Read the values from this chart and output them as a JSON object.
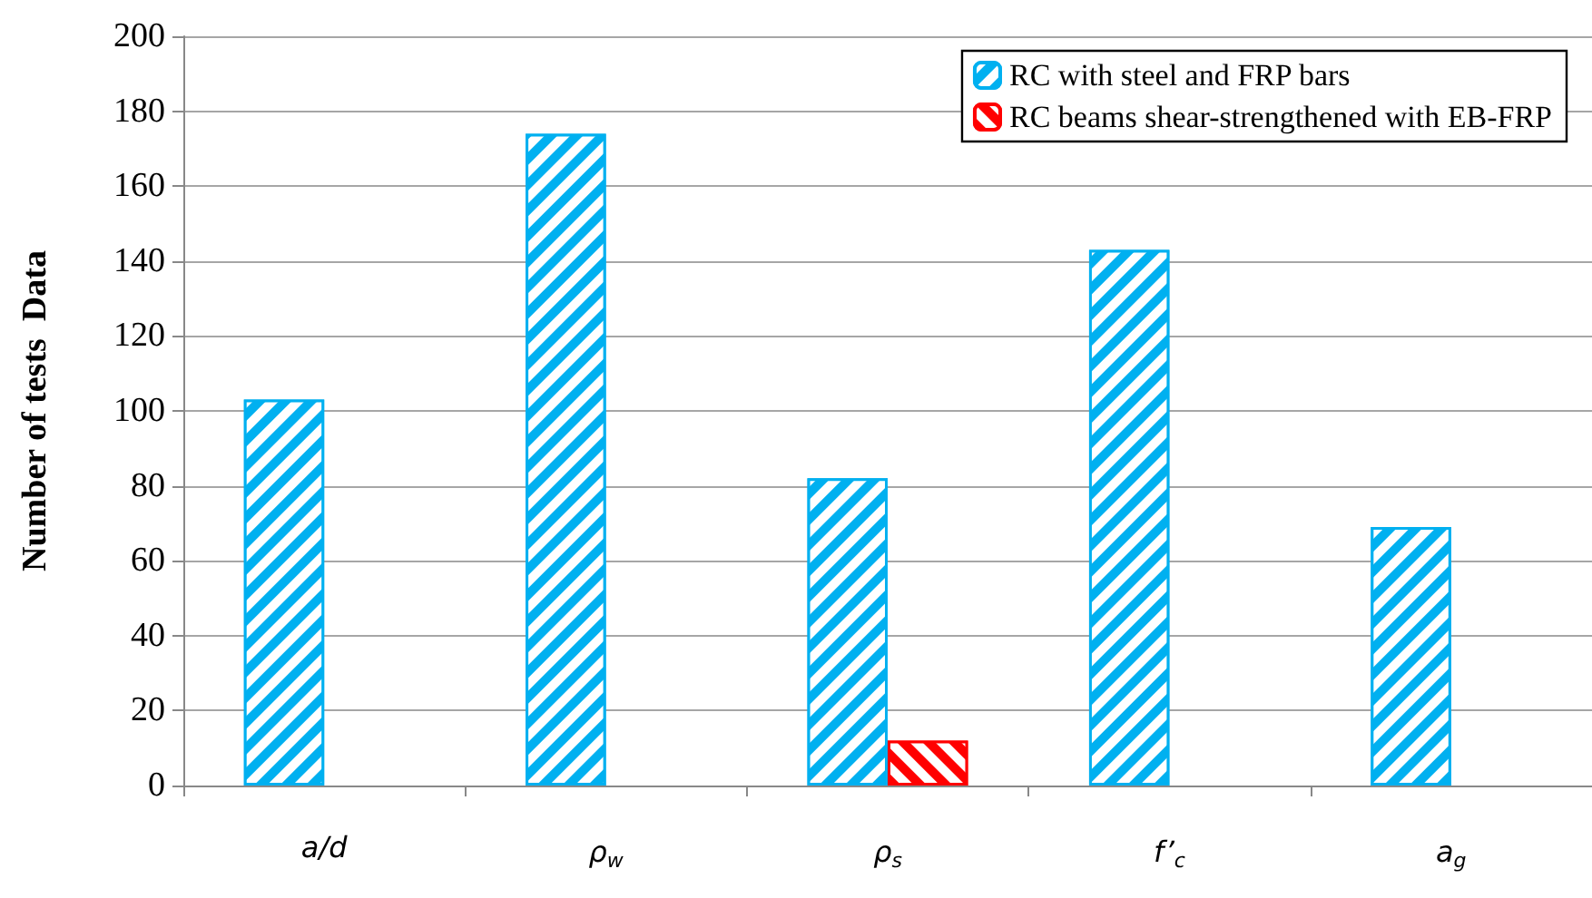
{
  "chart_data": {
    "type": "bar",
    "ylabel": "Number of tests  Data",
    "categories": [
      "a/d",
      "ρ$_{w}$",
      "ρ$_{s}$",
      "f’$_{c}$",
      "a$_{g}$"
    ],
    "series": [
      {
        "name": "RC with steel and FRP bars",
        "color": "#00b0f0",
        "values": [
          103,
          174,
          82,
          143,
          69
        ]
      },
      {
        "name": "RC beams shear-strengthened with EB-FRP",
        "color": "#ff0000",
        "values": [
          null,
          null,
          12,
          null,
          null
        ]
      }
    ],
    "ylim": [
      0,
      200
    ],
    "yticks": [
      0,
      20,
      40,
      60,
      80,
      100,
      120,
      140,
      160,
      180,
      200
    ],
    "grid": "y",
    "legend": "top right"
  }
}
